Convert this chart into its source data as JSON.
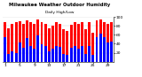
{
  "title": "Milwaukee Weather Outdoor Humidity",
  "subtitle": "Daily High/Low",
  "high_color": "#FF0000",
  "low_color": "#0000FF",
  "background_color": "#FFFFFF",
  "ylim": [
    0,
    100
  ],
  "yticks": [
    20,
    40,
    60,
    80,
    100
  ],
  "high_values": [
    88,
    75,
    85,
    88,
    90,
    85,
    92,
    88,
    85,
    95,
    88,
    85,
    75,
    80,
    88,
    85,
    72,
    68,
    82,
    88,
    85,
    88,
    72,
    88,
    65,
    92,
    95,
    88,
    85,
    88
  ],
  "low_values": [
    55,
    18,
    22,
    20,
    42,
    30,
    52,
    35,
    28,
    58,
    38,
    35,
    22,
    28,
    35,
    32,
    18,
    15,
    30,
    35,
    28,
    35,
    18,
    35,
    15,
    55,
    62,
    55,
    42,
    45
  ],
  "n_bars": 30,
  "bar_width": 0.72,
  "legend_high": "High",
  "legend_low": "Low",
  "tick_interval": 4,
  "first_label": 1
}
